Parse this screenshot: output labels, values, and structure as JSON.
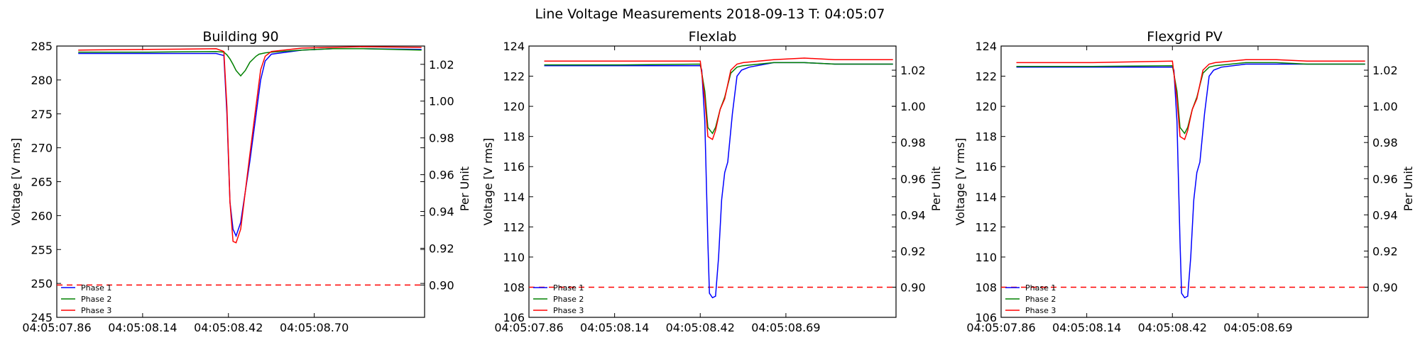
{
  "figure": {
    "suptitle": "Line Voltage Measurements 2018-09-13 T: 04:05:07"
  },
  "colors": {
    "phase1": "#0000ff",
    "phase2": "#008000",
    "phase3": "#ff0000",
    "threshold": "#ff0000"
  },
  "chart_data": [
    {
      "type": "line",
      "title": "Building 90",
      "xlabel": "",
      "ylabel": "Voltage [V rms]",
      "ylabel_right": "Per Unit",
      "xlim": [
        0,
        1.2
      ],
      "ylim": [
        245,
        285
      ],
      "ylim_right": [
        0.88244,
        1.02994
      ],
      "x_ticks": [
        {
          "x": 0.0,
          "label": "04:05:07.86"
        },
        {
          "x": 0.28,
          "label": "04:05:08.14"
        },
        {
          "x": 0.56,
          "label": "04:05:08.42"
        },
        {
          "x": 0.84,
          "label": "04:05:08.70"
        }
      ],
      "y_ticks": [
        245,
        250,
        255,
        260,
        265,
        270,
        275,
        280,
        285
      ],
      "y_ticks_right": [
        0.9,
        0.92,
        0.94,
        0.96,
        0.98,
        1.0,
        1.02
      ],
      "threshold": 0.9,
      "legend": "lower-left",
      "grid": false,
      "series": [
        {
          "name": "Phase 1",
          "x": [
            0.07,
            0.3,
            0.52,
            0.545,
            0.555,
            0.565,
            0.575,
            0.585,
            0.6,
            0.63,
            0.665,
            0.68,
            0.7,
            0.8,
            0.9,
            1.0,
            1.19
          ],
          "y": [
            283.9,
            283.9,
            283.9,
            283.6,
            275,
            262,
            258,
            257,
            259,
            268,
            280,
            282.8,
            283.8,
            284.4,
            284.6,
            284.6,
            284.5
          ]
        },
        {
          "name": "Phase 2",
          "x": [
            0.07,
            0.3,
            0.52,
            0.545,
            0.555,
            0.565,
            0.575,
            0.585,
            0.6,
            0.615,
            0.63,
            0.65,
            0.66,
            0.68,
            0.7,
            0.8,
            0.9,
            1.0,
            1.19
          ],
          "y": [
            284.1,
            284.1,
            284.2,
            284.1,
            283.7,
            283.1,
            282.3,
            281.4,
            280.6,
            281.4,
            282.6,
            283.5,
            283.8,
            284.0,
            284.1,
            284.4,
            284.6,
            284.6,
            284.4
          ]
        },
        {
          "name": "Phase 3",
          "x": [
            0.07,
            0.3,
            0.52,
            0.545,
            0.555,
            0.565,
            0.575,
            0.585,
            0.6,
            0.63,
            0.665,
            0.68,
            0.7,
            0.8,
            0.9,
            1.0,
            1.19
          ],
          "y": [
            284.4,
            284.5,
            284.6,
            284.2,
            276,
            262,
            256.2,
            256,
            258,
            269,
            281.5,
            283.5,
            284.2,
            284.7,
            284.8,
            284.9,
            284.8
          ]
        }
      ]
    },
    {
      "type": "line",
      "title": "Flexlab",
      "xlabel": "",
      "ylabel": "Voltage [V rms]",
      "ylabel_right": "Per Unit",
      "xlim": [
        0,
        1.2
      ],
      "ylim": [
        106,
        124
      ],
      "ylim_right": [
        0.88334,
        1.03334
      ],
      "x_ticks": [
        {
          "x": 0.0,
          "label": "04:05:07.86"
        },
        {
          "x": 0.28,
          "label": "04:05:08.14"
        },
        {
          "x": 0.56,
          "label": "04:05:08.42"
        },
        {
          "x": 0.84,
          "label": "04:05:08.69"
        }
      ],
      "y_ticks": [
        106,
        108,
        110,
        112,
        114,
        116,
        118,
        120,
        122,
        124
      ],
      "y_ticks_right": [
        0.9,
        0.92,
        0.94,
        0.96,
        0.98,
        1.0,
        1.02
      ],
      "threshold": 0.9,
      "legend": "lower-left",
      "grid": false,
      "series": [
        {
          "name": "Phase 1",
          "x": [
            0.05,
            0.3,
            0.56,
            0.565,
            0.575,
            0.585,
            0.59,
            0.6,
            0.61,
            0.62,
            0.63,
            0.64,
            0.65,
            0.665,
            0.68,
            0.695,
            0.72,
            0.8,
            0.9,
            1.0,
            1.19
          ],
          "y": [
            122.7,
            122.7,
            122.7,
            122.4,
            119,
            111,
            107.6,
            107.3,
            107.4,
            110,
            113.8,
            115.6,
            116.3,
            119.5,
            122,
            122.4,
            122.6,
            122.9,
            122.9,
            122.8,
            122.8
          ]
        },
        {
          "name": "Phase 2",
          "x": [
            0.05,
            0.3,
            0.56,
            0.575,
            0.585,
            0.6,
            0.61,
            0.625,
            0.64,
            0.66,
            0.68,
            0.7,
            0.8,
            0.9,
            1.0,
            1.19
          ],
          "y": [
            122.75,
            122.75,
            122.8,
            121,
            118.6,
            118.2,
            118.6,
            119.8,
            120.6,
            122.2,
            122.6,
            122.7,
            122.9,
            122.9,
            122.8,
            122.8
          ]
        },
        {
          "name": "Phase 3",
          "x": [
            0.05,
            0.3,
            0.56,
            0.575,
            0.585,
            0.6,
            0.61,
            0.625,
            0.64,
            0.66,
            0.68,
            0.7,
            0.8,
            0.9,
            1.0,
            1.19
          ],
          "y": [
            123.0,
            123.0,
            123.0,
            120.5,
            118,
            117.8,
            118.4,
            119.8,
            120.5,
            122.4,
            122.8,
            122.9,
            123.1,
            123.2,
            123.1,
            123.1
          ]
        }
      ]
    },
    {
      "type": "line",
      "title": "Flexgrid PV",
      "xlabel": "",
      "ylabel": "Voltage [V rms]",
      "ylabel_right": "Per Unit",
      "xlim": [
        0,
        1.2
      ],
      "ylim": [
        106,
        124
      ],
      "ylim_right": [
        0.88334,
        1.03334
      ],
      "x_ticks": [
        {
          "x": 0.0,
          "label": "04:05:07.86"
        },
        {
          "x": 0.28,
          "label": "04:05:08.14"
        },
        {
          "x": 0.56,
          "label": "04:05:08.42"
        },
        {
          "x": 0.84,
          "label": "04:05:08.69"
        }
      ],
      "y_ticks": [
        106,
        108,
        110,
        112,
        114,
        116,
        118,
        120,
        122,
        124
      ],
      "y_ticks_right": [
        0.9,
        0.92,
        0.94,
        0.96,
        0.98,
        1.0,
        1.02
      ],
      "threshold": 0.9,
      "legend": "lower-left",
      "grid": false,
      "series": [
        {
          "name": "Phase 1",
          "x": [
            0.05,
            0.3,
            0.56,
            0.565,
            0.575,
            0.585,
            0.59,
            0.6,
            0.61,
            0.62,
            0.63,
            0.64,
            0.65,
            0.665,
            0.68,
            0.695,
            0.72,
            0.8,
            0.9,
            1.0,
            1.19
          ],
          "y": [
            122.6,
            122.6,
            122.6,
            122.4,
            119,
            111,
            107.6,
            107.3,
            107.4,
            110,
            113.8,
            115.6,
            116.3,
            119.5,
            122,
            122.4,
            122.6,
            122.8,
            122.8,
            122.8,
            122.8
          ]
        },
        {
          "name": "Phase 2",
          "x": [
            0.05,
            0.3,
            0.56,
            0.575,
            0.585,
            0.6,
            0.61,
            0.625,
            0.64,
            0.66,
            0.68,
            0.7,
            0.8,
            0.9,
            1.0,
            1.19
          ],
          "y": [
            122.65,
            122.65,
            122.7,
            121,
            118.6,
            118.2,
            118.6,
            119.8,
            120.6,
            122.2,
            122.6,
            122.7,
            122.9,
            122.9,
            122.8,
            122.8
          ]
        },
        {
          "name": "Phase 3",
          "x": [
            0.05,
            0.3,
            0.56,
            0.575,
            0.585,
            0.6,
            0.61,
            0.625,
            0.64,
            0.66,
            0.68,
            0.7,
            0.8,
            0.9,
            1.0,
            1.19
          ],
          "y": [
            122.9,
            122.9,
            123.0,
            120.5,
            118,
            117.8,
            118.4,
            119.8,
            120.5,
            122.4,
            122.8,
            122.9,
            123.1,
            123.1,
            123.0,
            123.0
          ]
        }
      ]
    }
  ]
}
